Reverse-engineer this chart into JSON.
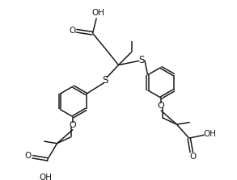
{
  "bg_color": "#ffffff",
  "line_color": "#1a1a1a",
  "line_width": 1.1,
  "figsize": [
    2.93,
    2.23
  ],
  "dpi": 100,
  "xlim": [
    0,
    10
  ],
  "ylim": [
    0,
    7.6
  ]
}
